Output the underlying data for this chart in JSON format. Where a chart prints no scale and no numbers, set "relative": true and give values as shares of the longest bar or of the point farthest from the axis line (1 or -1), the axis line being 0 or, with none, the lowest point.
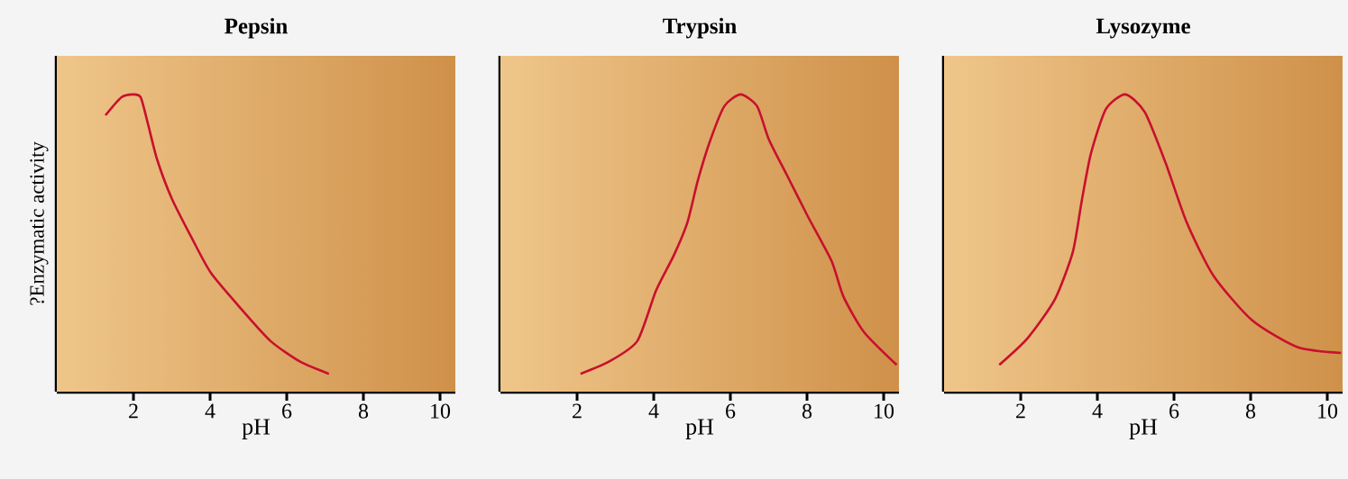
{
  "chart_data": [
    {
      "type": "line",
      "title": "Pepsin",
      "xlabel": "pH",
      "ylabel": "?Enzymatic activity",
      "relative": true,
      "tick_labels": "x",
      "color": "#c8102e",
      "xlim": [
        0,
        10.4
      ],
      "xticks": [
        2,
        4,
        6,
        8,
        10
      ],
      "x": [
        1.27,
        1.68,
        1.99,
        2.19,
        2.38,
        2.62,
        3.0,
        3.55,
        4.02,
        4.8,
        5.58,
        6.36,
        7.1
      ],
      "values": [
        0.93,
        0.99,
        1.0,
        0.99,
        0.9,
        0.78,
        0.65,
        0.51,
        0.4,
        0.28,
        0.17,
        0.1,
        0.06
      ]
    },
    {
      "type": "line",
      "title": "Trypsin",
      "xlabel": "pH",
      "relative": true,
      "tick_labels": "x",
      "color": "#c8102e",
      "xlim": [
        0,
        10.4
      ],
      "xticks": [
        2,
        4,
        6,
        8,
        10
      ],
      "x": [
        2.09,
        2.82,
        3.57,
        4.06,
        4.53,
        4.88,
        5.15,
        5.46,
        5.84,
        6.27,
        6.7,
        7.0,
        7.47,
        8.02,
        8.64,
        8.95,
        9.49,
        10.34
      ],
      "values": [
        0.06,
        0.1,
        0.17,
        0.34,
        0.46,
        0.57,
        0.71,
        0.84,
        0.96,
        1.0,
        0.96,
        0.85,
        0.73,
        0.59,
        0.44,
        0.32,
        0.2,
        0.09
      ]
    },
    {
      "type": "line",
      "title": "Lysozyme",
      "xlabel": "pH",
      "relative": true,
      "tick_labels": "x",
      "color": "#c8102e",
      "xlim": [
        0,
        10.4
      ],
      "xticks": [
        2,
        4,
        6,
        8,
        10
      ],
      "x": [
        1.44,
        2.18,
        2.89,
        3.36,
        3.59,
        3.83,
        4.22,
        4.73,
        5.24,
        5.78,
        6.33,
        7.03,
        8.04,
        9.22,
        10.36
      ],
      "values": [
        0.09,
        0.18,
        0.31,
        0.47,
        0.64,
        0.8,
        0.95,
        1.0,
        0.94,
        0.77,
        0.57,
        0.39,
        0.24,
        0.15,
        0.13
      ]
    }
  ]
}
